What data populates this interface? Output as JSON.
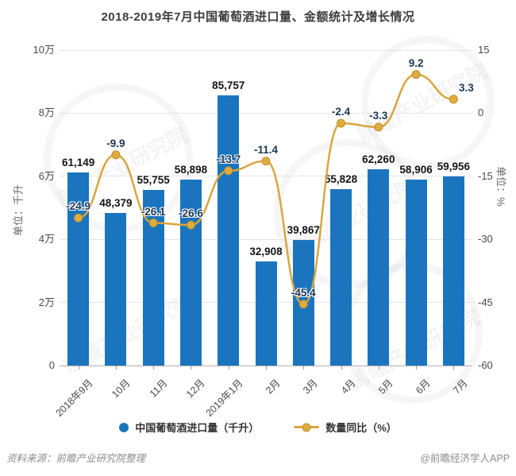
{
  "title": "2018-2019年7月中国葡萄酒进口量、金额统计及增长情况",
  "source_note": "资料来源：前瞻产业研究院整理",
  "brand": "@前瞻经济学人APP",
  "watermark_text": "前瞻产业研究院",
  "colors": {
    "bar": "#1b75be",
    "line": "#d9a63c",
    "marker_fill": "#dfac3f",
    "marker_stroke": "#c18f2c",
    "bar_label": "#141414",
    "line_label": "#1c3553",
    "axis_text": "#4a4a4a",
    "grid": "#e4e4e4"
  },
  "legend": [
    {
      "label": "中国葡萄酒进口量（千升）",
      "marker": "blue-dot"
    },
    {
      "label": "数量同比（%）",
      "marker": "gold-line-dot"
    }
  ],
  "chart_data": {
    "type": "bar+line",
    "categories": [
      "2018年9月",
      "10月",
      "11月",
      "12月",
      "2019年1月",
      "2月",
      "3月",
      "4月",
      "5月",
      "6月",
      "7月"
    ],
    "series": [
      {
        "name": "中国葡萄酒进口量（千升）",
        "type": "bar",
        "axis": "left",
        "values": [
          61149,
          48379,
          55755,
          58898,
          85757,
          32908,
          39867,
          55828,
          62260,
          58906,
          59956
        ],
        "labels": [
          "61,149",
          "48,379",
          "55,755",
          "58,898",
          "85,757",
          "32,908",
          "39,867",
          "55,828",
          "62,260",
          "58,906",
          "59,956"
        ]
      },
      {
        "name": "数量同比（%）",
        "type": "line",
        "axis": "right",
        "values": [
          -24.9,
          -9.9,
          -26.1,
          -26.6,
          -13.7,
          -11.4,
          -45.4,
          -2.4,
          -3.3,
          9.2,
          3.3
        ],
        "labels": [
          "-24.9",
          "-9.9",
          "-26.1",
          "-26.6",
          "-13.7",
          "-11.4",
          "-45.4",
          "-2.4",
          "-3.3",
          "9.2",
          "3.3"
        ]
      }
    ],
    "left_axis": {
      "title": "单位：千升",
      "min": 0,
      "max": 100000,
      "ticks": [
        "10万",
        "8万",
        "6万",
        "4万",
        "2万",
        "0"
      ]
    },
    "right_axis": {
      "title": "单位：%",
      "min": -60,
      "max": 15,
      "ticks": [
        "15",
        "0",
        "-15",
        "-30",
        "-45",
        "-60"
      ]
    },
    "grid": "horizontal-only",
    "legend_position": "bottom"
  }
}
